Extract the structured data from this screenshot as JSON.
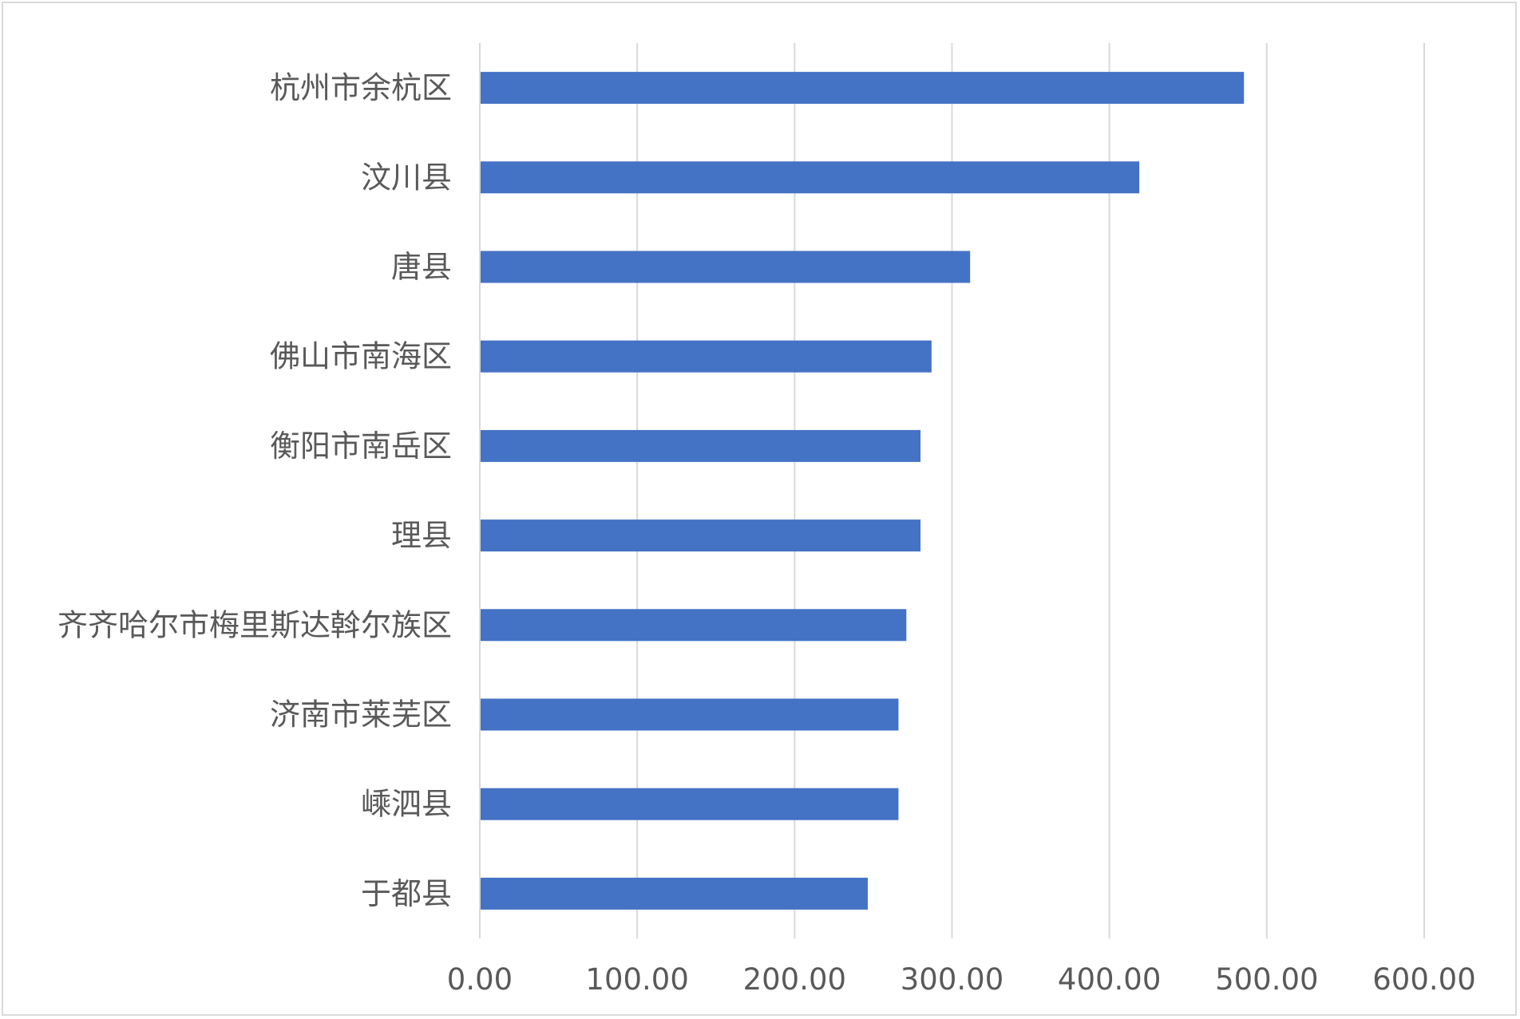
{
  "chart_data": {
    "type": "bar",
    "orientation": "horizontal",
    "title": "",
    "xlabel": "",
    "ylabel": "",
    "categories": [
      "杭州市余杭区",
      "汶川县",
      "唐县",
      "佛山市南海区",
      "衡阳市南岳区",
      "理县",
      "齐齐哈尔市梅里斯达斡尔族区",
      "济南市莱芜区",
      "嵊泗县",
      "于都县"
    ],
    "values": [
      485.5,
      419.0,
      311.5,
      287.0,
      280.0,
      280.0,
      271.0,
      266.0,
      266.0,
      246.5
    ],
    "xlim": [
      0,
      600
    ],
    "ticks": [
      "0.00",
      "100.00",
      "200.00",
      "300.00",
      "400.00",
      "500.00",
      "600.00"
    ],
    "tick_values": [
      0,
      100,
      200,
      300,
      400,
      500,
      600
    ],
    "grid": "vertical",
    "legend": "none",
    "bar_color": "#4472c4"
  }
}
